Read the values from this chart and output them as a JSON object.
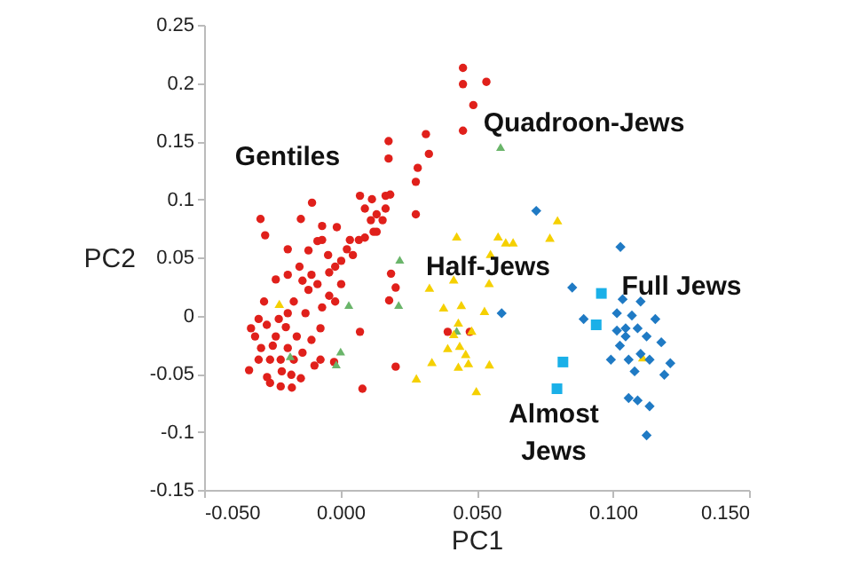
{
  "chart_data": {
    "type": "scatter",
    "xlabel": "PC1",
    "ylabel": "PC2",
    "xlim": [
      -0.05,
      0.15
    ],
    "ylim": [
      -0.15,
      0.25
    ],
    "xticks": [
      {
        "value": -0.05,
        "label": "-0.050"
      },
      {
        "value": 0,
        "label": "0.000"
      },
      {
        "value": 0.05,
        "label": "0.050"
      },
      {
        "value": 0.1,
        "label": "0.100"
      },
      {
        "value": 0.15,
        "label": "0.150"
      }
    ],
    "yticks": [
      -0.15,
      -0.1,
      -0.05,
      0,
      0.05,
      0.1,
      0.15,
      0.2,
      0.25
    ],
    "grid": false,
    "series": [
      {
        "name": "Gentiles",
        "color": "#e0201b",
        "marker": "circle",
        "x": [
          0.045,
          0.045,
          0.0536,
          0.0488,
          0.045,
          0.0314,
          0.0325,
          0.0177,
          0.0177,
          0.0284,
          0.0277,
          0.0277,
          0.0183,
          0.0166,
          0.0072,
          0.0116,
          -0.0104,
          -0.0293,
          -0.0276,
          -0.0145,
          -0.0067,
          -0.0084,
          -0.0013,
          -0.0193,
          -0.0117,
          0.0024,
          0.0068,
          0.0122,
          0.0133,
          0.009,
          0.0186,
          0.0203,
          0.0179,
          0.0072,
          0.0203,
          0.0081,
          -0.0023,
          0.0394,
          0.0475,
          -0.0328,
          -0.0335,
          -0.03,
          -0.0269,
          -0.0219,
          -0.0178,
          -0.0145,
          -0.0139,
          -0.0106,
          -0.0073,
          -0.0067,
          -0.0041,
          -0.0084,
          -0.015,
          -0.0193,
          -0.0237,
          -0.028,
          -0.03,
          -0.0226,
          -0.0237,
          -0.0193,
          -0.0258,
          -0.0215,
          -0.0171,
          -0.016,
          -0.0128,
          -0.0171,
          -0.0117,
          -0.0041,
          0.0003,
          0.0046,
          0.009,
          0.0133,
          0.0155,
          0.0166,
          0.0003,
          -0.0019,
          -0.0073,
          -0.0095,
          -0.0258,
          -0.0291,
          -0.0313,
          -0.0193,
          -0.027,
          -0.02,
          -0.0248,
          -0.0219,
          -0.018,
          0.0035,
          0.0112,
          -0.0045,
          -0.0106,
          -0.0067,
          -0.0019,
          -0.0139
        ],
        "values": [
          0.213,
          0.199,
          0.201,
          0.181,
          0.159,
          0.156,
          0.139,
          0.15,
          0.135,
          0.127,
          0.115,
          0.087,
          0.104,
          0.103,
          0.103,
          0.1,
          0.097,
          0.083,
          0.069,
          0.083,
          0.077,
          0.064,
          0.076,
          0.057,
          0.056,
          0.057,
          0.065,
          0.072,
          0.087,
          0.092,
          0.036,
          0.024,
          0.013,
          -0.014,
          -0.044,
          -0.063,
          -0.04,
          -0.014,
          -0.014,
          -0.011,
          -0.047,
          -0.038,
          -0.053,
          -0.061,
          -0.062,
          -0.054,
          -0.032,
          -0.021,
          -0.011,
          0.007,
          0.017,
          0.027,
          0.042,
          0.035,
          0.031,
          0.012,
          -0.003,
          -0.003,
          -0.018,
          -0.028,
          -0.038,
          -0.048,
          -0.038,
          -0.018,
          0.002,
          0.012,
          0.022,
          0.037,
          0.047,
          0.052,
          0.067,
          0.072,
          0.082,
          0.092,
          0.027,
          0.012,
          -0.038,
          -0.043,
          -0.058,
          -0.028,
          -0.018,
          0.002,
          -0.008,
          -0.01,
          -0.026,
          -0.038,
          -0.051,
          0.065,
          0.082,
          0.052,
          0.035,
          0.065,
          0.042,
          0.03
        ]
      },
      {
        "name": "Quadroon-Jews",
        "color": "#6ab56a",
        "marker": "triangle",
        "x": [
          0.0588,
          0.0218,
          0.0214,
          0.0031,
          0.0001,
          -0.0015,
          -0.0184,
          0.0427
        ],
        "values": [
          0.145,
          0.048,
          0.009,
          0.009,
          -0.031,
          -0.042,
          -0.035,
          -0.013
        ]
      },
      {
        "name": "Half-Jews",
        "color": "#f5d000",
        "marker": "triangle",
        "x": [
          -0.0224,
          0.0427,
          0.0579,
          0.0607,
          0.0634,
          0.0551,
          0.0797,
          0.0769,
          0.0416,
          0.0546,
          0.0327,
          0.0444,
          0.0379,
          0.0529,
          0.0433,
          0.0416,
          0.0394,
          0.0438,
          0.046,
          0.047,
          0.0433,
          0.0336,
          0.0547,
          0.0279,
          0.0499,
          0.111,
          0.0482
        ],
        "values": [
          0.01,
          0.068,
          0.068,
          0.063,
          0.063,
          0.053,
          0.082,
          0.067,
          0.031,
          0.028,
          0.024,
          0.009,
          0.007,
          0.004,
          -0.006,
          -0.016,
          -0.028,
          -0.026,
          -0.033,
          -0.041,
          -0.044,
          -0.04,
          -0.042,
          -0.054,
          -0.065,
          -0.036,
          -0.013
        ]
      },
      {
        "name": "Full Jews",
        "color": "#1f7ac4",
        "marker": "diamond",
        "x": [
          0.0719,
          0.1028,
          0.0851,
          0.0592,
          0.0893,
          0.1036,
          0.1102,
          0.1015,
          0.107,
          0.1091,
          0.1047,
          0.1026,
          0.1124,
          0.1178,
          0.0993,
          0.1058,
          0.1135,
          0.1211,
          0.108,
          0.1189,
          0.1058,
          0.1091,
          0.1135,
          0.1124,
          0.1015,
          0.1156,
          0.1102,
          0.1047
        ],
        "values": [
          0.09,
          0.059,
          0.024,
          0.002,
          -0.003,
          0.014,
          0.012,
          0.002,
          0,
          -0.011,
          -0.018,
          -0.026,
          -0.018,
          -0.023,
          -0.038,
          -0.038,
          -0.038,
          -0.041,
          -0.048,
          -0.051,
          -0.071,
          -0.073,
          -0.078,
          -0.103,
          -0.013,
          -0.003,
          -0.033,
          -0.011
        ]
      },
      {
        "name": "Almost Jews",
        "color": "#1ab0e8",
        "marker": "square",
        "x": [
          0.0958,
          0.0939,
          0.0817,
          0.0795
        ],
        "values": [
          0.019,
          -0.008,
          -0.04,
          -0.063
        ]
      }
    ]
  }
}
